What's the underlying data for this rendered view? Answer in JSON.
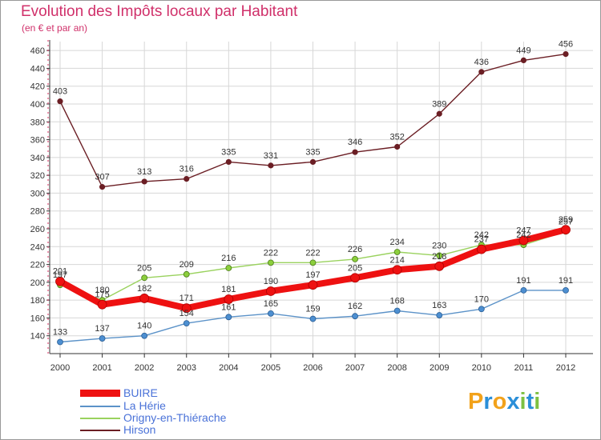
{
  "header": {
    "title": "Evolution des Impôts locaux par Habitant",
    "subtitle": "(en € et par an)"
  },
  "brand": {
    "letters": [
      "P",
      "r",
      "o",
      "x",
      "i",
      "t",
      "i"
    ],
    "colors": [
      "#f2a21b",
      "#2b8fd8",
      "#f2a21b",
      "#2b8fd8",
      "#7dc142",
      "#2b8fd8",
      "#7dc142"
    ]
  },
  "colors": {
    "title": "#d0306a",
    "legend_text": "#4a72d8",
    "axis": "#333333",
    "grid": "#d7d7d7"
  },
  "chart_data": {
    "type": "line",
    "title": "Evolution des Impôts locaux par Habitant",
    "subtitle": "(en € et par an)",
    "xlabel": "",
    "ylabel": "",
    "x": [
      2000,
      2001,
      2002,
      2003,
      2004,
      2005,
      2006,
      2007,
      2008,
      2009,
      2010,
      2011,
      2012
    ],
    "ylim": [
      120,
      470
    ],
    "yticks": [
      140,
      160,
      180,
      200,
      220,
      240,
      260,
      280,
      300,
      320,
      340,
      360,
      380,
      400,
      420,
      440,
      460
    ],
    "grid": true,
    "legend_position": "bottom-left",
    "series": [
      {
        "name": "Hirson",
        "color": "#6b1e24",
        "values": [
          403,
          307,
          313,
          316,
          335,
          331,
          335,
          346,
          352,
          389,
          436,
          449,
          456
        ],
        "labels": [
          "403",
          "307",
          "313",
          "316",
          "335",
          "331",
          "335",
          "346",
          "352",
          "389",
          "436",
          "449",
          "456"
        ]
      },
      {
        "name": "Origny-en-Thiérache",
        "color": "#9ad25e",
        "values": [
          197,
          180,
          205,
          209,
          216,
          222,
          222,
          226,
          234,
          230,
          242,
          242,
          257
        ],
        "labels": [
          "197",
          "180",
          "205",
          "209",
          "216",
          "222",
          "222",
          "226",
          "234",
          "230",
          "242",
          "242",
          "257"
        ]
      },
      {
        "name": "La Hérie",
        "color": "#5b92c8",
        "values": [
          133,
          137,
          140,
          154,
          161,
          165,
          159,
          162,
          168,
          163,
          170,
          191,
          191
        ],
        "labels": [
          "133",
          "137",
          "140",
          "154",
          "161",
          "165",
          "159",
          "162",
          "168",
          "163",
          "170",
          "191",
          "191"
        ]
      },
      {
        "name": "BUIRE",
        "color": "#ee1111",
        "values": [
          201,
          175,
          182,
          171,
          181,
          190,
          197,
          205,
          214,
          218,
          237,
          247,
          259
        ],
        "labels": [
          "201",
          "175",
          "182",
          "171",
          "181",
          "190",
          "197",
          "205",
          "214",
          "218",
          "237",
          "247",
          "259"
        ]
      }
    ]
  }
}
